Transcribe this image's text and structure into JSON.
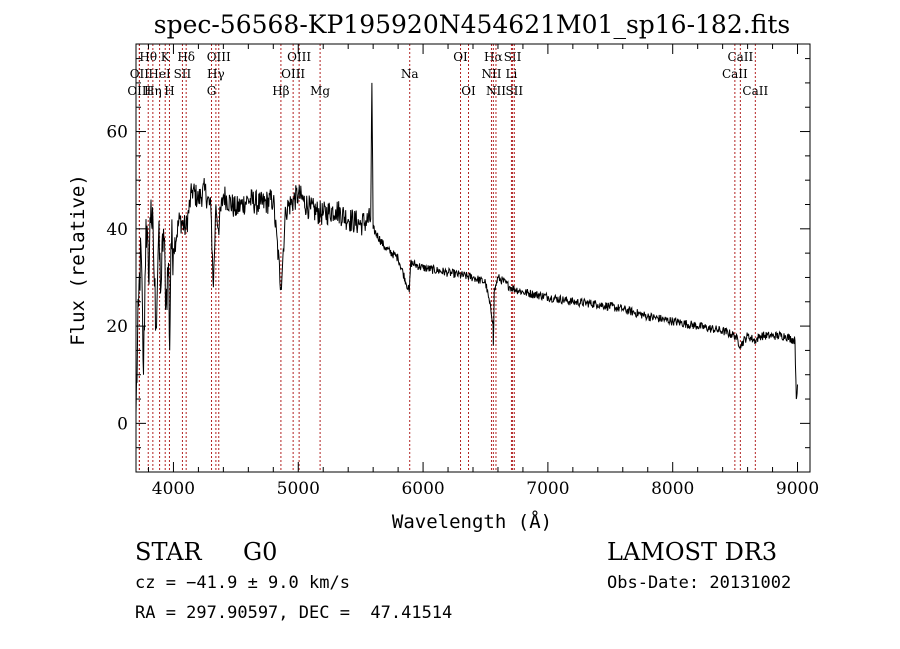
{
  "chart_data": {
    "type": "line",
    "title": "spec-56568-KP195920N454621M01_sp16-182.fits",
    "xlabel": "Wavelength (Å)",
    "ylabel": "Flux (relative)",
    "xlim": [
      3700,
      9100
    ],
    "ylim": [
      -10,
      78
    ],
    "x_ticks": [
      4000,
      5000,
      6000,
      7000,
      8000,
      9000
    ],
    "x_tick_labels": [
      "4000",
      "5000",
      "6000",
      "7000",
      "8000",
      "9000"
    ],
    "y_ticks": [
      0,
      20,
      40,
      60
    ],
    "y_tick_labels": [
      "0",
      "20",
      "40",
      "60"
    ],
    "grid": false,
    "series": [
      {
        "name": "flux",
        "x": [
          3700,
          3720,
          3740,
          3760,
          3780,
          3800,
          3820,
          3840,
          3860,
          3880,
          3900,
          3920,
          3940,
          3960,
          3970,
          3980,
          4000,
          4050,
          4100,
          4150,
          4200,
          4250,
          4300,
          4320,
          4340,
          4360,
          4400,
          4500,
          4600,
          4700,
          4800,
          4861,
          4900,
          5000,
          5100,
          5200,
          5300,
          5400,
          5500,
          5580,
          5590,
          5600,
          5700,
          5800,
          5890,
          5900,
          6000,
          6200,
          6400,
          6500,
          6560,
          6563,
          6570,
          6600,
          6700,
          6800,
          7000,
          7200,
          7400,
          7600,
          7800,
          8000,
          8200,
          8400,
          8500,
          8542,
          8600,
          8662,
          8700,
          8800,
          8900,
          8980,
          8990,
          9000
        ],
        "y": [
          2,
          24,
          36,
          10,
          42,
          30,
          46,
          35,
          20,
          38,
          28,
          40,
          25,
          33,
          15,
          37,
          36,
          42,
          40,
          48,
          46,
          48,
          44,
          28,
          45,
          40,
          47,
          44,
          46,
          45,
          46,
          28,
          44,
          47,
          44,
          43,
          44,
          42,
          41,
          42,
          70,
          40,
          36,
          34,
          27,
          33,
          32,
          31,
          30,
          29,
          21,
          16,
          27,
          30,
          28,
          27,
          26,
          25,
          24.5,
          23.5,
          22,
          21,
          20,
          19,
          18,
          16,
          18,
          17,
          18,
          18,
          18,
          17,
          5,
          8
        ]
      }
    ],
    "line_markers": [
      {
        "label": "Hθ",
        "x": 3798,
        "row": 1
      },
      {
        "label": "OII",
        "x": 3727,
        "row": 2
      },
      {
        "label": "OIII",
        "x": 3727,
        "row": 3
      },
      {
        "label": "K",
        "x": 3934,
        "row": 1
      },
      {
        "label": "HeI",
        "x": 3889,
        "row": 2
      },
      {
        "label": "Hη",
        "x": 3835,
        "row": 3
      },
      {
        "label": "SII",
        "x": 4072,
        "row": 2
      },
      {
        "label": "H",
        "x": 3968,
        "row": 3
      },
      {
        "label": "Hδ",
        "x": 4102,
        "row": 1
      },
      {
        "label": "OIII",
        "x": 4363,
        "row": 1
      },
      {
        "label": "Hγ",
        "x": 4340,
        "row": 2
      },
      {
        "label": "G",
        "x": 4305,
        "row": 3
      },
      {
        "label": "Hβ",
        "x": 4861,
        "row": 3
      },
      {
        "label": "OIII",
        "x": 5007,
        "row": 1
      },
      {
        "label": "OIII",
        "x": 4959,
        "row": 2
      },
      {
        "label": "Mg",
        "x": 5175,
        "row": 3
      },
      {
        "label": "Na",
        "x": 5893,
        "row": 2
      },
      {
        "label": "OI",
        "x": 6300,
        "row": 1
      },
      {
        "label": "OI",
        "x": 6364,
        "row": 3
      },
      {
        "label": "Hα",
        "x": 6563,
        "row": 1
      },
      {
        "label": "NII",
        "x": 6548,
        "row": 2
      },
      {
        "label": "NII",
        "x": 6584,
        "row": 3
      },
      {
        "label": "SII",
        "x": 6717,
        "row": 1
      },
      {
        "label": "Li",
        "x": 6708,
        "row": 2
      },
      {
        "label": "SII",
        "x": 6731,
        "row": 3
      },
      {
        "label": "CaII",
        "x": 8542,
        "row": 1
      },
      {
        "label": "CaII",
        "x": 8498,
        "row": 2
      },
      {
        "label": "CaII",
        "x": 8662,
        "row": 3
      }
    ]
  },
  "info": {
    "class_label": "STAR",
    "subclass_label": "G0",
    "survey_label": "LAMOST DR3",
    "redshift_text": "cz = −41.9 ± 9.0 km/s",
    "obs_date_text": "Obs-Date: 20131002",
    "coords_text": "RA = 297.90597, DEC =  47.41514"
  },
  "colors": {
    "line": "#000000",
    "marker": "#b22222",
    "axis": "#000000"
  }
}
